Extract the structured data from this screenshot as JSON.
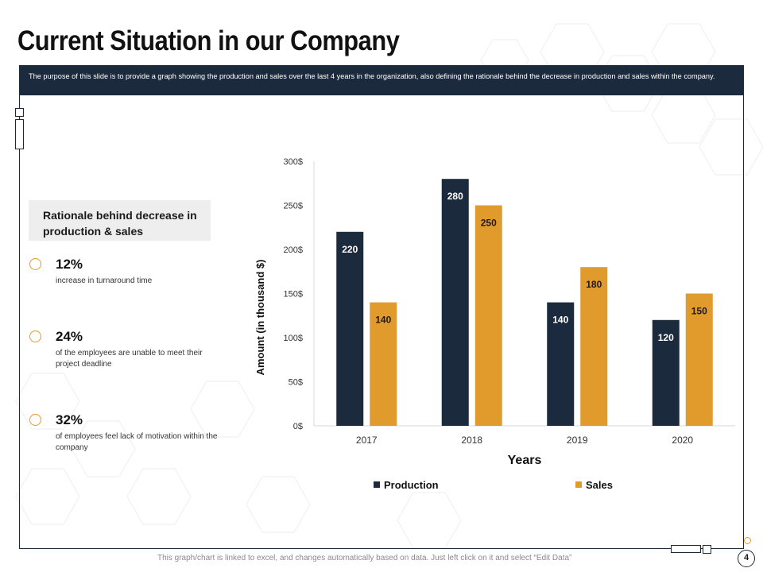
{
  "page": {
    "title": "Current Situation in our Company",
    "banner_text": "The purpose of this slide is to provide a graph showing the production and sales over the last 4 years in the organization, also defining the rationale behind the decrease in production and sales within the company.",
    "footer_note": "This graph/chart is linked to excel, and changes automatically based on data. Just left click on it and select “Edit Data”",
    "page_number": "4"
  },
  "rationale": {
    "heading": "Rationale behind decrease in production & sales",
    "stats": [
      {
        "value": "12%",
        "desc": "increase in turnaround time"
      },
      {
        "value": "24%",
        "desc": "of the employees are unable to meet their project deadline"
      },
      {
        "value": "32%",
        "desc": "of employees feel lack of motivation within the company"
      }
    ]
  },
  "colors": {
    "navy": "#1c2a3e",
    "orange": "#e19a2c"
  },
  "chart_data": {
    "type": "bar",
    "categories": [
      "2017",
      "2018",
      "2019",
      "2020"
    ],
    "series": [
      {
        "name": "Production",
        "values": [
          220,
          280,
          140,
          120
        ],
        "color": "#1c2a3e"
      },
      {
        "name": "Sales",
        "values": [
          140,
          250,
          180,
          150
        ],
        "color": "#e19a2c"
      }
    ],
    "title": "",
    "xlabel": "Years",
    "ylabel": "Amount (in thousand $)",
    "ylim": [
      0,
      300
    ],
    "yticks": [
      0,
      50,
      100,
      150,
      200,
      250,
      300
    ],
    "ytick_labels": [
      "0$",
      "50$",
      "100$",
      "150$",
      "200$",
      "250$",
      "300$"
    ],
    "grid": false,
    "legend_position": "bottom",
    "data_labels": true
  }
}
